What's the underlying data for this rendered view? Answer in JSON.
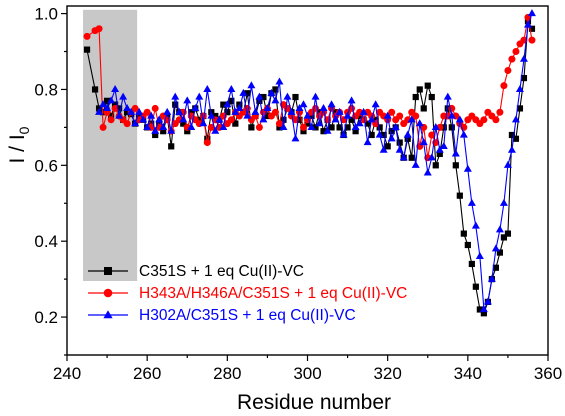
{
  "chart_data": {
    "type": "line",
    "xlabel": "Residue number",
    "ylabel": "I / I",
    "ylabel_subscript": "0",
    "xlim": [
      240,
      360
    ],
    "ylim": [
      0.1,
      1.02
    ],
    "x_ticks": [
      240,
      260,
      280,
      300,
      320,
      340,
      360
    ],
    "y_ticks": [
      0.2,
      0.4,
      0.6,
      0.8,
      1.0
    ],
    "y_tick_labels": [
      "0.2",
      "0.4",
      "0.6",
      "0.8",
      "1.0"
    ],
    "grid": false,
    "legend_position": "bottom-left",
    "highlight_band": {
      "x": [
        244,
        257.5
      ],
      "y": [
        0.295,
        1.01
      ],
      "color": "#c8c8c8"
    },
    "series": [
      {
        "name": "C351S + 1 eq Cu(II)-VC",
        "color": "#000000",
        "marker": "square",
        "x": [
          245,
          247,
          248,
          249,
          250,
          251,
          252,
          253,
          254,
          255,
          256,
          257,
          258,
          259,
          260,
          261,
          262,
          263,
          264,
          265,
          266,
          267,
          268,
          269,
          270,
          271,
          272,
          273,
          274,
          275,
          276,
          277,
          278,
          279,
          280,
          281,
          282,
          283,
          284,
          285,
          286,
          287,
          288,
          289,
          290,
          291,
          292,
          293,
          294,
          295,
          296,
          297,
          298,
          299,
          300,
          301,
          302,
          303,
          304,
          305,
          306,
          307,
          308,
          309,
          310,
          311,
          312,
          313,
          314,
          315,
          316,
          317,
          318,
          319,
          320,
          321,
          322,
          323,
          324,
          325,
          326,
          327,
          328,
          329,
          330,
          331,
          332,
          333,
          334,
          335,
          336,
          337,
          338,
          339,
          340,
          341,
          342,
          343,
          344,
          345,
          346,
          347,
          348,
          349,
          350,
          351,
          352,
          353,
          354,
          355,
          356
        ],
        "y": [
          0.905,
          0.8,
          0.75,
          0.74,
          0.77,
          0.73,
          0.76,
          0.75,
          0.72,
          0.74,
          0.735,
          0.71,
          0.73,
          0.72,
          0.7,
          0.71,
          0.68,
          0.71,
          0.69,
          0.73,
          0.65,
          0.76,
          0.74,
          0.71,
          0.69,
          0.74,
          0.75,
          0.72,
          0.73,
          0.67,
          0.74,
          0.73,
          0.72,
          0.76,
          0.74,
          0.77,
          0.71,
          0.76,
          0.74,
          0.79,
          0.7,
          0.73,
          0.77,
          0.78,
          0.73,
          0.79,
          0.8,
          0.7,
          0.72,
          0.75,
          0.74,
          0.78,
          0.72,
          0.69,
          0.71,
          0.73,
          0.7,
          0.74,
          0.69,
          0.72,
          0.7,
          0.74,
          0.7,
          0.68,
          0.7,
          0.72,
          0.69,
          0.73,
          0.72,
          0.71,
          0.68,
          0.72,
          0.7,
          0.68,
          0.65,
          0.69,
          0.7,
          0.66,
          0.62,
          0.67,
          0.62,
          0.78,
          0.8,
          0.75,
          0.81,
          0.78,
          0.6,
          0.63,
          0.7,
          0.75,
          0.7,
          0.6,
          0.52,
          0.42,
          0.39,
          0.34,
          0.28,
          0.22,
          0.21,
          0.24,
          0.3,
          0.33,
          0.37,
          0.41,
          0.42,
          0.68,
          0.67,
          0.75,
          0.83,
          0.98,
          0.96
        ]
      },
      {
        "name": "H343A/H346A/C351S + 1 eq Cu(II)-VC",
        "color": "#ff0000",
        "marker": "circle",
        "x": [
          245,
          247,
          248,
          249,
          250,
          251,
          252,
          253,
          254,
          255,
          256,
          257,
          258,
          259,
          260,
          261,
          262,
          263,
          264,
          265,
          266,
          267,
          268,
          269,
          270,
          271,
          272,
          273,
          274,
          275,
          276,
          277,
          278,
          279,
          280,
          281,
          282,
          283,
          284,
          285,
          286,
          287,
          288,
          289,
          290,
          291,
          292,
          293,
          294,
          295,
          296,
          297,
          298,
          299,
          300,
          301,
          302,
          303,
          304,
          305,
          306,
          307,
          308,
          309,
          310,
          311,
          312,
          313,
          314,
          315,
          316,
          317,
          318,
          319,
          320,
          321,
          322,
          323,
          324,
          325,
          326,
          327,
          328,
          329,
          330,
          331,
          332,
          333,
          334,
          335,
          336,
          337,
          338,
          339,
          340,
          341,
          342,
          343,
          344,
          345,
          346,
          347,
          348,
          349,
          350,
          351,
          352,
          353,
          354,
          355,
          356
        ],
        "y": [
          0.94,
          0.955,
          0.96,
          0.7,
          0.74,
          0.72,
          0.75,
          0.73,
          0.72,
          0.71,
          0.74,
          0.75,
          0.72,
          0.73,
          0.74,
          0.7,
          0.75,
          0.7,
          0.73,
          0.72,
          0.69,
          0.71,
          0.72,
          0.74,
          0.7,
          0.73,
          0.72,
          0.71,
          0.73,
          0.66,
          0.7,
          0.72,
          0.7,
          0.73,
          0.71,
          0.72,
          0.74,
          0.73,
          0.74,
          0.75,
          0.72,
          0.73,
          0.7,
          0.74,
          0.75,
          0.73,
          0.74,
          0.71,
          0.76,
          0.75,
          0.73,
          0.72,
          0.74,
          0.7,
          0.72,
          0.74,
          0.75,
          0.73,
          0.74,
          0.72,
          0.75,
          0.73,
          0.74,
          0.72,
          0.74,
          0.75,
          0.73,
          0.74,
          0.72,
          0.74,
          0.73,
          0.71,
          0.74,
          0.73,
          0.72,
          0.74,
          0.72,
          0.73,
          0.71,
          0.72,
          0.74,
          0.73,
          0.65,
          0.7,
          0.62,
          0.68,
          0.66,
          0.7,
          0.73,
          0.73,
          0.75,
          0.73,
          0.71,
          0.7,
          0.72,
          0.73,
          0.72,
          0.71,
          0.72,
          0.74,
          0.73,
          0.72,
          0.74,
          0.81,
          0.85,
          0.88,
          0.9,
          0.92,
          0.93,
          0.99,
          0.93
        ]
      },
      {
        "name": "H302A/C351S + 1 eq Cu(II)-VC",
        "color": "#0000ff",
        "marker": "triangle",
        "x": [
          248,
          249,
          250,
          251,
          252,
          253,
          254,
          255,
          256,
          257,
          258,
          259,
          260,
          261,
          262,
          263,
          264,
          265,
          266,
          267,
          268,
          269,
          270,
          271,
          272,
          273,
          274,
          275,
          276,
          277,
          278,
          279,
          280,
          281,
          282,
          283,
          284,
          285,
          286,
          287,
          288,
          289,
          290,
          291,
          292,
          293,
          294,
          295,
          296,
          297,
          298,
          299,
          300,
          301,
          302,
          303,
          304,
          305,
          306,
          307,
          308,
          309,
          310,
          311,
          312,
          313,
          314,
          315,
          316,
          317,
          318,
          319,
          320,
          321,
          322,
          323,
          324,
          325,
          326,
          327,
          328,
          329,
          330,
          331,
          332,
          333,
          334,
          335,
          336,
          337,
          338,
          339,
          340,
          341,
          342,
          343,
          344,
          345,
          346,
          347,
          348,
          349,
          350,
          351,
          352,
          353,
          354,
          355,
          356
        ],
        "y": [
          0.74,
          0.76,
          0.75,
          0.77,
          0.8,
          0.73,
          0.78,
          0.75,
          0.74,
          0.71,
          0.74,
          0.72,
          0.7,
          0.73,
          0.69,
          0.72,
          0.7,
          0.74,
          0.69,
          0.78,
          0.74,
          0.72,
          0.77,
          0.7,
          0.75,
          0.78,
          0.71,
          0.8,
          0.73,
          0.69,
          0.72,
          0.7,
          0.76,
          0.8,
          0.74,
          0.75,
          0.79,
          0.73,
          0.81,
          0.74,
          0.78,
          0.72,
          0.75,
          0.79,
          0.77,
          0.82,
          0.7,
          0.78,
          0.74,
          0.67,
          0.75,
          0.76,
          0.73,
          0.7,
          0.78,
          0.71,
          0.75,
          0.69,
          0.76,
          0.72,
          0.74,
          0.68,
          0.73,
          0.77,
          0.7,
          0.71,
          0.74,
          0.66,
          0.72,
          0.76,
          0.68,
          0.64,
          0.73,
          0.67,
          0.7,
          0.64,
          0.62,
          0.68,
          0.72,
          0.6,
          0.71,
          0.66,
          0.58,
          0.62,
          0.7,
          0.64,
          0.65,
          0.78,
          0.73,
          0.63,
          0.72,
          0.68,
          0.59,
          0.5,
          0.44,
          0.36,
          0.22,
          0.24,
          0.3,
          0.38,
          0.43,
          0.5,
          0.6,
          0.64,
          0.72,
          0.8,
          0.88,
          0.97,
          1.0
        ]
      }
    ]
  }
}
